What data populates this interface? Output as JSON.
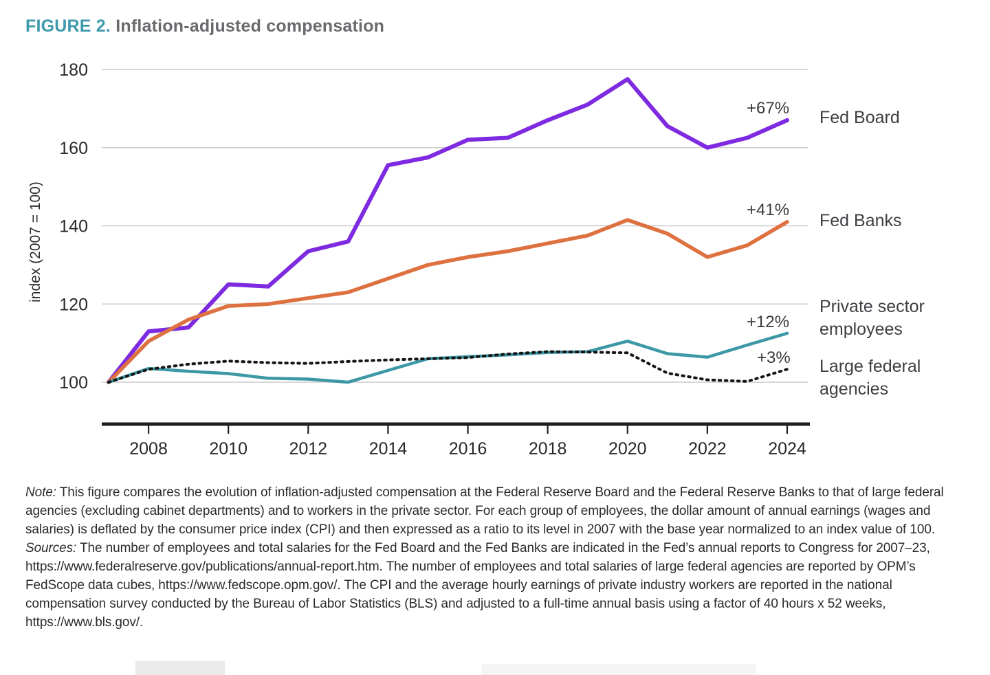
{
  "title": {
    "prefix": "FIGURE 2.",
    "text": "Inflation-adjusted compensation"
  },
  "chart_data": {
    "type": "line",
    "title": "FIGURE 2. Inflation-adjusted compensation",
    "xlabel": "",
    "ylabel": "index (2007 = 100)",
    "ylim": [
      100,
      180
    ],
    "yticks": [
      100,
      120,
      140,
      160,
      180
    ],
    "grid": "horizontal",
    "legend_position": "right",
    "x": [
      2007,
      2008,
      2009,
      2010,
      2011,
      2012,
      2013,
      2014,
      2015,
      2016,
      2017,
      2018,
      2019,
      2020,
      2021,
      2022,
      2023,
      2024
    ],
    "x_ticks": [
      2008,
      2010,
      2012,
      2014,
      2016,
      2018,
      2020,
      2022,
      2024
    ],
    "series": [
      {
        "name": "Fed Board",
        "annotation": "+67%",
        "color": "#7d2ae0",
        "style": "solid",
        "width": 6,
        "values": [
          100,
          113,
          114,
          125,
          124.5,
          133.5,
          136,
          155.5,
          157.5,
          162,
          162.5,
          167,
          171,
          177.5,
          165.5,
          160,
          162.5,
          167
        ]
      },
      {
        "name": "Fed Banks",
        "annotation": "+41%",
        "color": "#de7140",
        "style": "solid",
        "width": 5.5,
        "values": [
          100,
          110.5,
          116,
          119.5,
          120,
          121.5,
          123,
          126.5,
          130,
          132,
          133.5,
          135.5,
          137.5,
          141.5,
          138,
          132,
          135,
          141
        ]
      },
      {
        "name": "Private sector employees",
        "annotation": "+12%",
        "color": "#3d98a6",
        "style": "solid",
        "width": 4.5,
        "values": [
          100,
          103.5,
          102.8,
          102.2,
          101,
          100.8,
          100,
          103,
          106,
          106.5,
          107,
          107.6,
          107.8,
          110.5,
          107.3,
          106.4,
          109.5,
          112.5
        ]
      },
      {
        "name": "Large federal agencies",
        "annotation": "+3%",
        "color": "#151515",
        "style": "dotted",
        "width": 4,
        "values": [
          100,
          103.3,
          104.6,
          105.4,
          105,
          104.8,
          105.3,
          105.7,
          106,
          106.3,
          107.2,
          107.8,
          107.7,
          107.5,
          102.3,
          100.6,
          100.2,
          103.3
        ]
      }
    ]
  },
  "axis": {
    "ylabel": "index (2007 = 100)"
  },
  "annotations": {
    "fed_board": "+67%",
    "fed_banks": "+41%",
    "private": "+12%",
    "federal": "+3%"
  },
  "legend": {
    "fed_board": "Fed Board",
    "fed_banks": "Fed Banks",
    "private_line1": "Private sector",
    "private_line2": "employees",
    "federal_line1": "Large federal",
    "federal_line2": "agencies"
  },
  "note": {
    "label": "Note:",
    "text": " This figure compares the evolution of inflation-adjusted compensation at the Federal Reserve Board and the Federal Reserve Banks to that of large federal agencies (excluding cabinet departments) and to workers in the private sector. For each group of employees, the dollar amount of annual earnings (wages and salaries) is deflated by the consumer price index (CPI) and then expressed as a ratio to its level in 2007 with the base year normalized to an index value of 100."
  },
  "sources": {
    "label": "Sources:",
    "text": " The number of employees and total salaries for the Fed Board and the Fed Banks are indicated in the Fed’s annual reports to Congress for 2007–23,  https://www.federalreserve.gov/publications/annual-report.htm. The number of employees and total salaries of large federal agencies are reported by OPM’s FedScope data cubes, https://www.fedscope.opm.gov/. The CPI and the average hourly earnings of private industry workers are reported in the national compensation survey conducted by the Bureau of Labor Statistics (BLS) and adjusted to a full-time annual basis using a factor of 40 hours x 52 weeks, https://www.bls.gov/."
  }
}
